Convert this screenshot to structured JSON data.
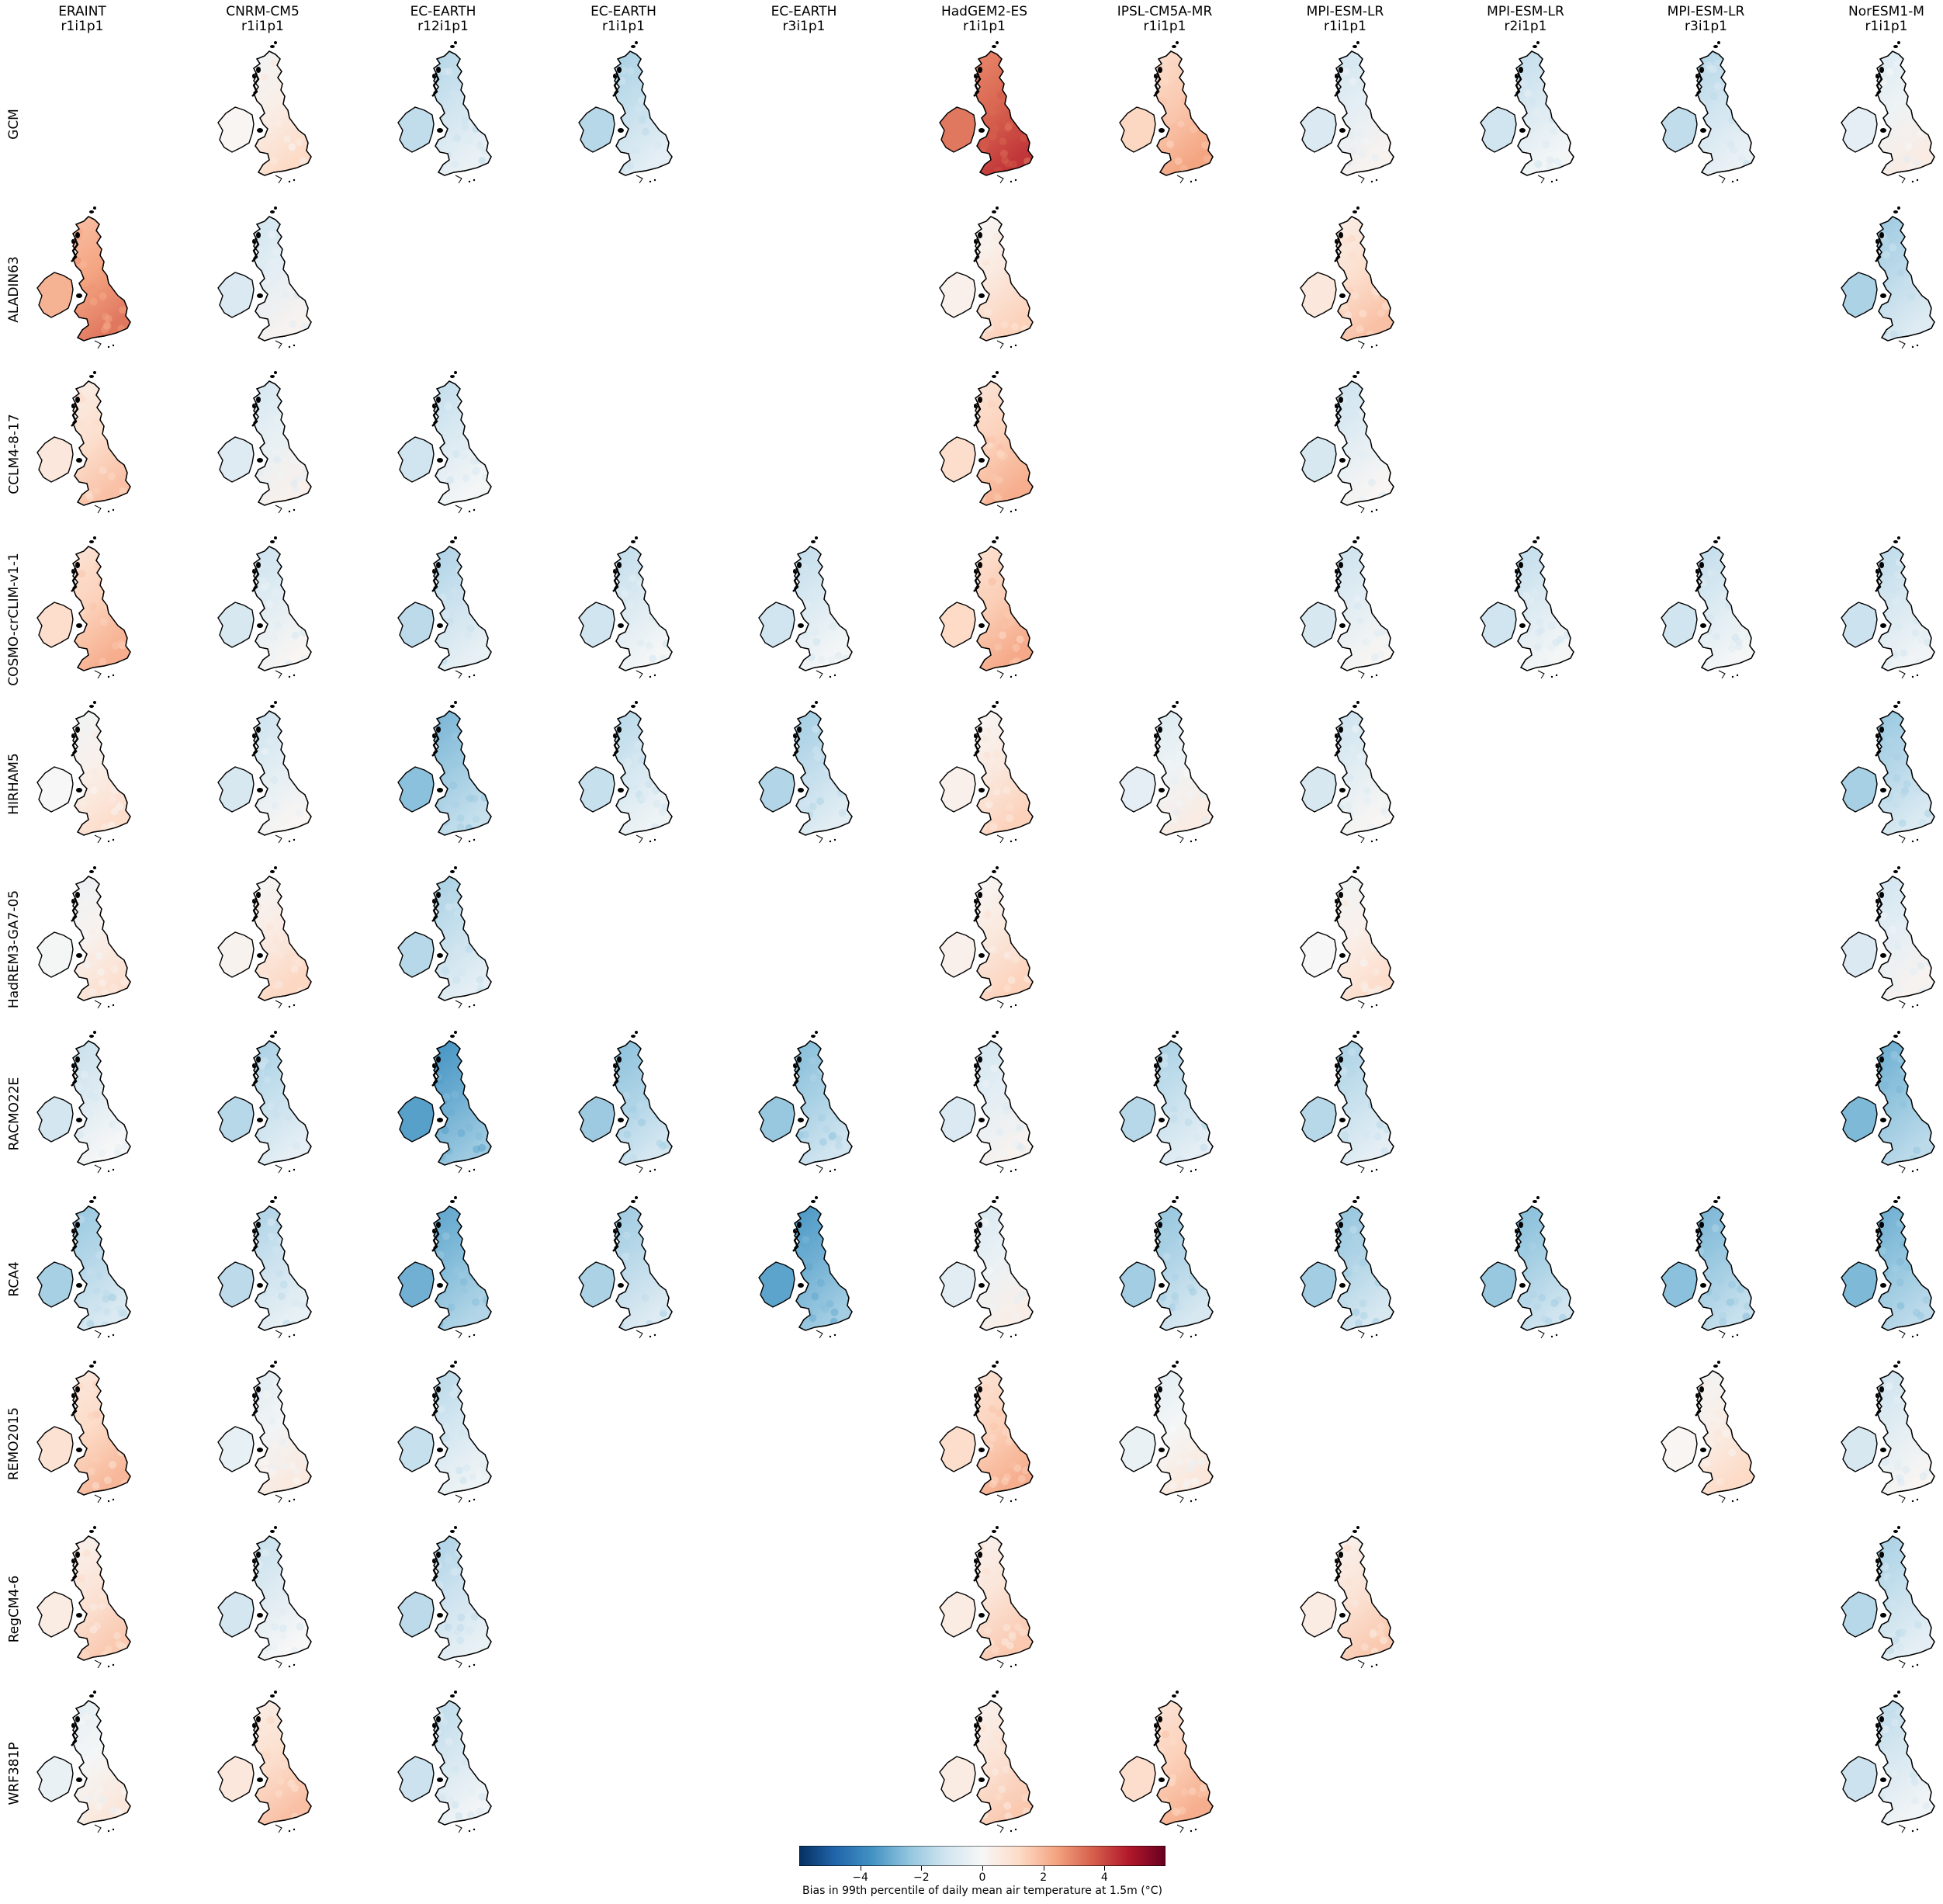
{
  "columns": [
    {
      "model": "ERAINT",
      "member": "r1i1p1"
    },
    {
      "model": "CNRM-CM5",
      "member": "r1i1p1"
    },
    {
      "model": "EC-EARTH",
      "member": "r12i1p1"
    },
    {
      "model": "EC-EARTH",
      "member": "r1i1p1"
    },
    {
      "model": "EC-EARTH",
      "member": "r3i1p1"
    },
    {
      "model": "HadGEM2-ES",
      "member": "r1i1p1"
    },
    {
      "model": "IPSL-CM5A-MR",
      "member": "r1i1p1"
    },
    {
      "model": "MPI-ESM-LR",
      "member": "r1i1p1"
    },
    {
      "model": "MPI-ESM-LR",
      "member": "r2i1p1"
    },
    {
      "model": "MPI-ESM-LR",
      "member": "r3i1p1"
    },
    {
      "model": "NorESM1-M",
      "member": "r1i1p1"
    }
  ],
  "rows": [
    {
      "label": "GCM",
      "biases": [
        null,
        0.4,
        -1.2,
        -1.4,
        null,
        3.5,
        1.6,
        -0.6,
        -0.9,
        -1.2,
        -0.3
      ]
    },
    {
      "label": "ALADIN63",
      "biases": [
        2.4,
        -0.6,
        null,
        null,
        null,
        0.6,
        null,
        1.0,
        null,
        null,
        -1.6
      ]
    },
    {
      "label": "CCLM4-8-17",
      "biases": [
        1.0,
        -0.5,
        -0.9,
        null,
        null,
        1.4,
        null,
        -0.7,
        null,
        null,
        null
      ]
    },
    {
      "label": "COSMO-crCLIM-v1-1",
      "biases": [
        1.4,
        -0.7,
        -1.3,
        -0.9,
        -0.9,
        1.5,
        null,
        -0.7,
        -0.9,
        -0.9,
        -1.0
      ]
    },
    {
      "label": "HIRHAM5",
      "biases": [
        0.3,
        -0.7,
        -2.2,
        -1.1,
        -1.5,
        0.6,
        -0.3,
        -0.7,
        null,
        null,
        -1.7
      ]
    },
    {
      "label": "HadREM3-GA7-05",
      "biases": [
        0.2,
        0.5,
        -1.4,
        null,
        null,
        0.6,
        null,
        0.3,
        null,
        null,
        -0.6
      ]
    },
    {
      "label": "RACMO22E",
      "biases": [
        -0.8,
        -1.4,
        -3.0,
        -1.9,
        -2.0,
        -0.6,
        -1.4,
        -1.4,
        null,
        null,
        -2.4
      ]
    },
    {
      "label": "RCA4",
      "biases": [
        -1.7,
        -1.3,
        -2.6,
        -1.6,
        -2.9,
        -0.4,
        -1.8,
        -1.8,
        -2.0,
        -2.2,
        -2.4
      ]
    },
    {
      "label": "REMO2015",
      "biases": [
        1.2,
        -0.2,
        -1.1,
        null,
        null,
        1.4,
        -0.1,
        null,
        null,
        0.4,
        -0.7
      ]
    },
    {
      "label": "RegCM4-6",
      "biases": [
        0.8,
        -0.8,
        -1.3,
        null,
        null,
        0.8,
        null,
        0.8,
        null,
        null,
        -1.4
      ]
    },
    {
      "label": "WRF381P",
      "biases": [
        -0.1,
        1.0,
        -1.0,
        null,
        null,
        0.8,
        1.4,
        null,
        null,
        null,
        -1.0
      ]
    }
  ],
  "colorbar": {
    "min": -6,
    "max": 6,
    "ticks": [
      -4,
      -2,
      0,
      2,
      4
    ],
    "tick_labels": [
      "−4",
      "−2",
      "0",
      "2",
      "4"
    ],
    "label": "Bias in 99th percentile of daily mean air temperature at 1.5m (°C)",
    "colormap": "RdBu_r",
    "stops": [
      "#053061",
      "#2166ac",
      "#4393c3",
      "#92c5de",
      "#d1e5f0",
      "#f7f7f7",
      "#fddbc7",
      "#f4a582",
      "#d6604d",
      "#b2182b",
      "#67001f"
    ]
  }
}
